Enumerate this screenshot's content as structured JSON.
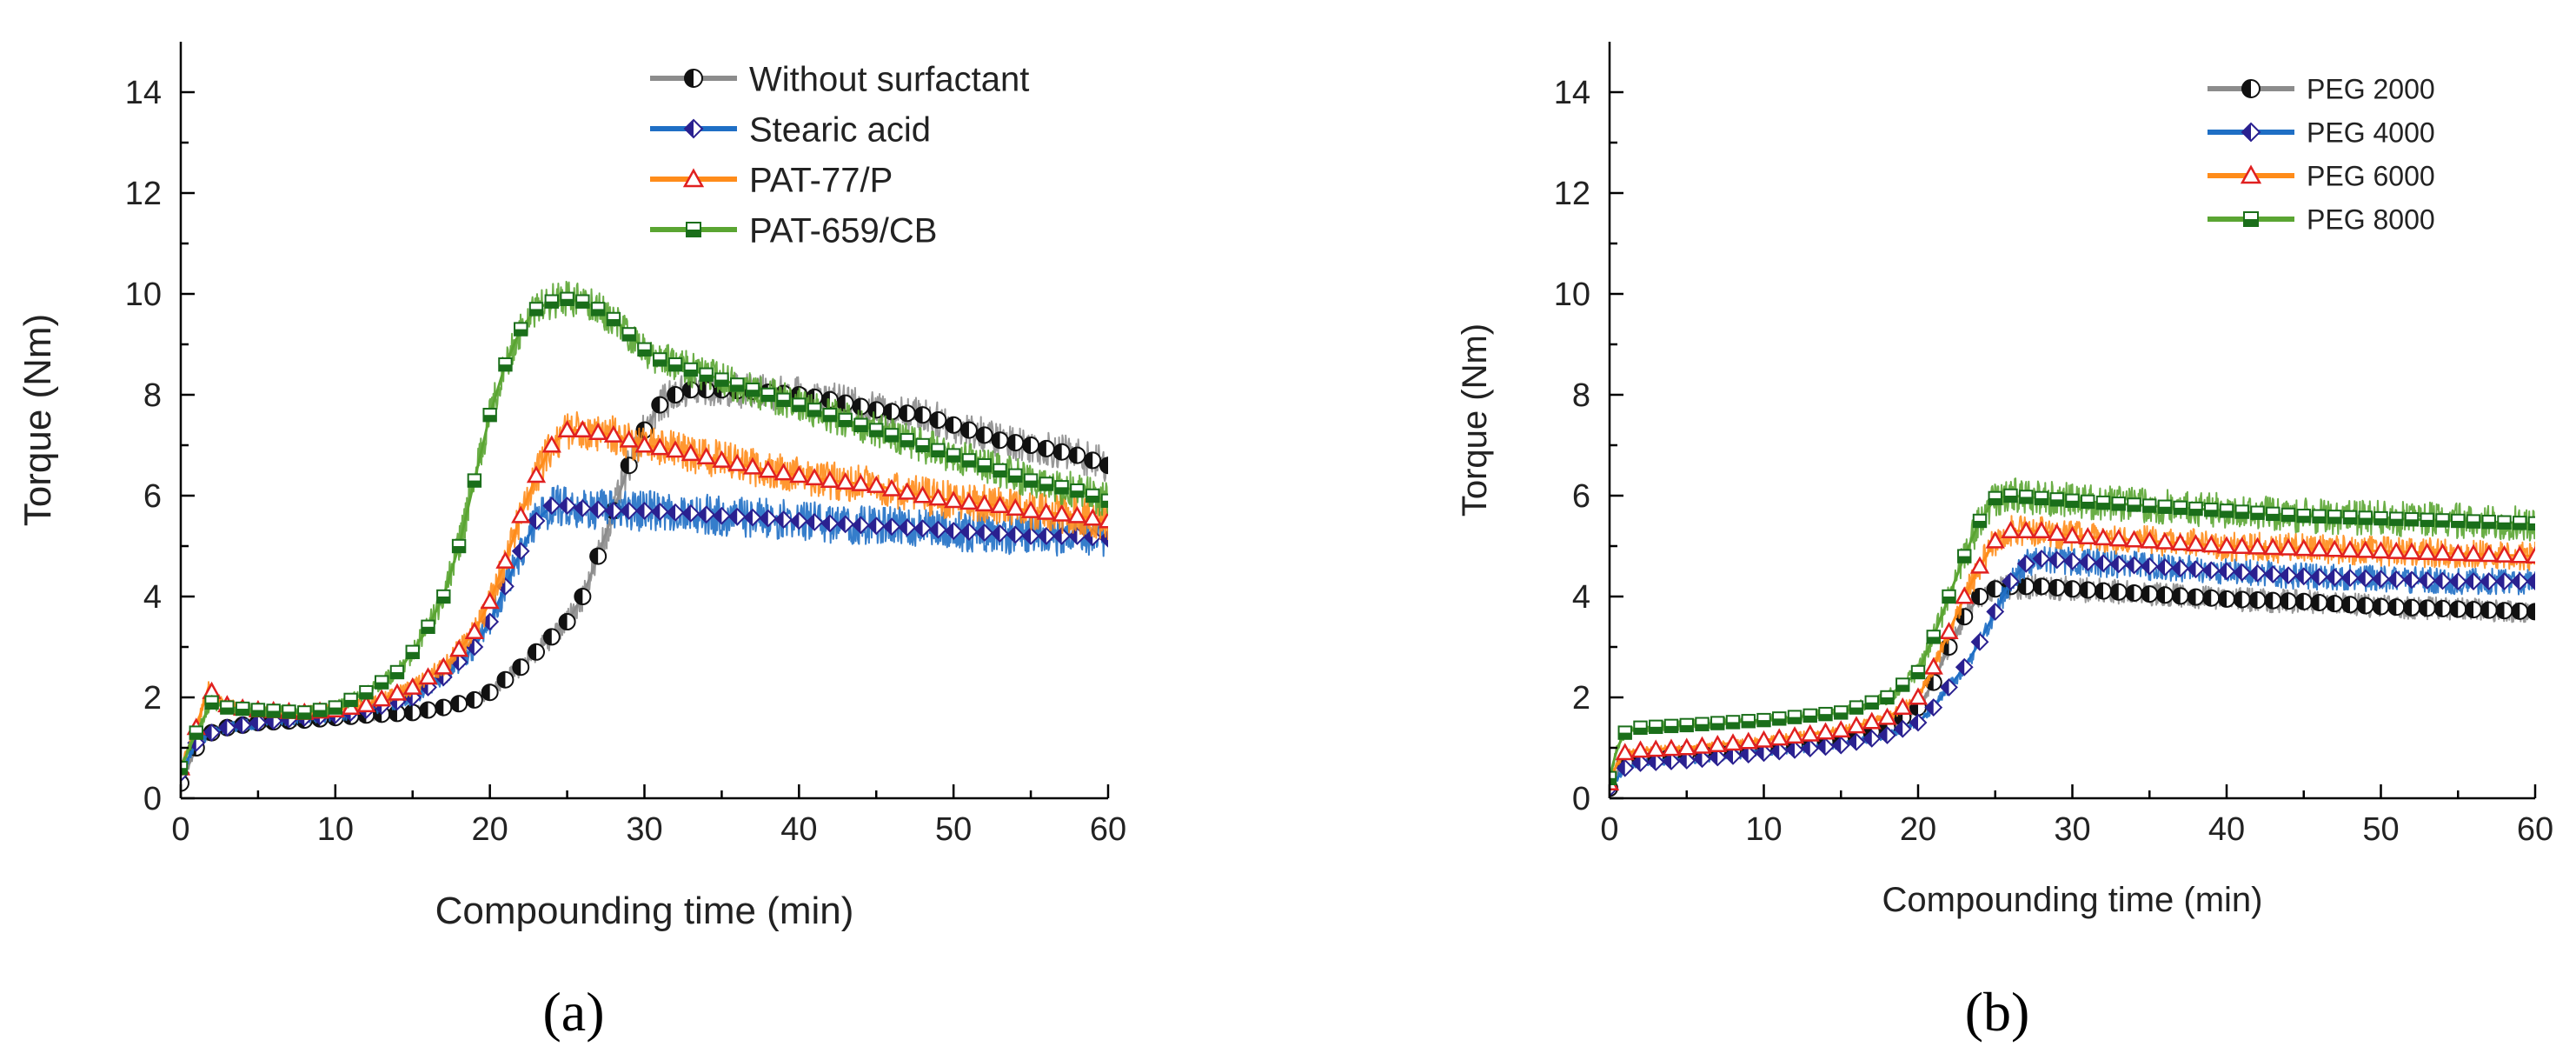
{
  "chart_data": [
    {
      "type": "line",
      "caption": "(a)",
      "xlabel": "Compounding time (min)",
      "ylabel": "Torque (Nm)",
      "xlim": [
        0,
        60
      ],
      "ylim": [
        0,
        15
      ],
      "xticks": [
        "0",
        "10",
        "20",
        "30",
        "40",
        "50",
        "60"
      ],
      "yticks": [
        "0",
        "2",
        "4",
        "6",
        "8",
        "10",
        "12",
        "14"
      ],
      "legend_position": "top-right",
      "series": [
        {
          "name": "Without surfactant",
          "color": "#8c8c8c",
          "marker": "circle",
          "marker_color": "#111111",
          "noise": 0.35,
          "x": [
            0,
            1,
            2,
            3,
            5,
            8,
            10,
            12,
            15,
            17,
            19,
            20,
            21,
            22,
            23,
            24,
            25,
            26,
            27,
            28,
            29,
            30,
            31,
            32,
            33,
            35,
            38,
            40,
            42,
            45,
            48,
            50,
            53,
            55,
            58,
            60
          ],
          "y": [
            0.3,
            1.0,
            1.3,
            1.4,
            1.5,
            1.55,
            1.6,
            1.65,
            1.7,
            1.8,
            1.95,
            2.1,
            2.35,
            2.6,
            2.9,
            3.2,
            3.5,
            4.0,
            4.8,
            5.7,
            6.6,
            7.3,
            7.8,
            8.0,
            8.1,
            8.1,
            8.05,
            8.0,
            7.9,
            7.7,
            7.6,
            7.4,
            7.1,
            7.0,
            6.8,
            6.6
          ]
        },
        {
          "name": "Stearic acid",
          "color": "#1f6fc5",
          "marker": "diamond",
          "marker_color": "#2a2090",
          "noise": 0.4,
          "x": [
            0,
            1,
            2,
            3,
            5,
            8,
            10,
            12,
            15,
            17,
            19,
            20,
            21,
            22,
            23,
            24,
            25,
            26,
            28,
            30,
            33,
            35,
            38,
            40,
            42,
            45,
            48,
            50,
            53,
            55,
            58,
            60
          ],
          "y": [
            0.5,
            1.1,
            1.3,
            1.4,
            1.5,
            1.6,
            1.65,
            1.75,
            2.0,
            2.4,
            3.0,
            3.5,
            4.2,
            4.9,
            5.5,
            5.8,
            5.8,
            5.75,
            5.7,
            5.7,
            5.65,
            5.6,
            5.55,
            5.5,
            5.45,
            5.4,
            5.35,
            5.3,
            5.25,
            5.2,
            5.2,
            5.15
          ]
        },
        {
          "name": "PAT-77/P",
          "color": "#ff8c1a",
          "marker": "triangle",
          "marker_color": "#e02020",
          "noise": 0.38,
          "x": [
            0,
            1,
            1.8,
            2.5,
            3.5,
            5,
            8,
            10,
            12,
            15,
            17,
            19,
            20,
            21,
            22,
            23,
            24,
            25,
            26,
            28,
            30,
            32,
            35,
            38,
            40,
            42,
            45,
            48,
            50,
            53,
            55,
            58,
            60
          ],
          "y": [
            0.6,
            1.4,
            2.2,
            1.9,
            1.8,
            1.75,
            1.7,
            1.75,
            1.85,
            2.2,
            2.6,
            3.3,
            3.9,
            4.7,
            5.6,
            6.4,
            7.0,
            7.3,
            7.3,
            7.2,
            7.0,
            6.9,
            6.7,
            6.5,
            6.4,
            6.3,
            6.2,
            6.0,
            5.9,
            5.8,
            5.7,
            5.6,
            5.5
          ]
        },
        {
          "name": "PAT-659/CB",
          "color": "#5aa532",
          "marker": "square",
          "marker_color": "#1a6e1a",
          "noise": 0.35,
          "x": [
            0,
            1,
            2,
            3,
            5,
            8,
            10,
            12,
            14,
            15,
            16,
            17,
            18,
            19,
            20,
            21,
            22,
            23,
            24,
            25,
            26,
            27,
            28,
            29,
            30,
            31,
            32,
            33,
            35,
            38,
            40,
            42,
            45,
            48,
            50,
            53,
            55,
            58,
            60
          ],
          "y": [
            0.6,
            1.3,
            1.9,
            1.8,
            1.75,
            1.7,
            1.8,
            2.1,
            2.5,
            2.9,
            3.4,
            4.0,
            5.0,
            6.3,
            7.6,
            8.6,
            9.3,
            9.7,
            9.85,
            9.9,
            9.85,
            9.7,
            9.5,
            9.2,
            8.9,
            8.7,
            8.6,
            8.5,
            8.3,
            8.0,
            7.8,
            7.6,
            7.3,
            7.0,
            6.8,
            6.5,
            6.3,
            6.1,
            5.9
          ]
        }
      ]
    },
    {
      "type": "line",
      "caption": "(b)",
      "xlabel": "Compounding time (min)",
      "ylabel": "Torque (Nm)",
      "xlim": [
        0,
        60
      ],
      "ylim": [
        0,
        15
      ],
      "xticks": [
        "0",
        "10",
        "20",
        "30",
        "40",
        "50",
        "60"
      ],
      "yticks": [
        "0",
        "2",
        "4",
        "6",
        "8",
        "10",
        "12",
        "14"
      ],
      "legend_position": "top-right",
      "series": [
        {
          "name": "PEG 2000",
          "color": "#8c8c8c",
          "marker": "circle",
          "marker_color": "#111111",
          "noise": 0.3,
          "x": [
            0,
            0.5,
            1,
            2,
            5,
            10,
            15,
            18,
            20,
            21,
            22,
            23,
            24,
            25,
            26,
            28,
            30,
            35,
            40,
            45,
            50,
            55,
            60
          ],
          "y": [
            0.2,
            0.5,
            0.7,
            0.8,
            0.9,
            1.0,
            1.15,
            1.4,
            1.8,
            2.3,
            3.0,
            3.6,
            4.0,
            4.15,
            4.2,
            4.2,
            4.15,
            4.05,
            3.95,
            3.9,
            3.8,
            3.75,
            3.7
          ]
        },
        {
          "name": "PEG 4000",
          "color": "#1f6fc5",
          "marker": "diamond",
          "marker_color": "#2a2090",
          "noise": 0.3,
          "x": [
            0,
            0.5,
            1,
            2,
            5,
            10,
            15,
            18,
            20,
            21,
            22,
            23,
            24,
            25,
            26,
            27,
            28,
            30,
            35,
            40,
            45,
            50,
            55,
            60
          ],
          "y": [
            0.2,
            0.4,
            0.6,
            0.7,
            0.75,
            0.9,
            1.05,
            1.25,
            1.5,
            1.8,
            2.2,
            2.6,
            3.1,
            3.7,
            4.3,
            4.65,
            4.75,
            4.7,
            4.6,
            4.5,
            4.4,
            4.35,
            4.3,
            4.3
          ]
        },
        {
          "name": "PEG 6000",
          "color": "#ff8c1a",
          "marker": "triangle",
          "marker_color": "#e02020",
          "noise": 0.3,
          "x": [
            0,
            0.5,
            1,
            2,
            5,
            10,
            15,
            18,
            20,
            21,
            22,
            23,
            24,
            25,
            26,
            28,
            30,
            35,
            40,
            45,
            50,
            55,
            60
          ],
          "y": [
            0.3,
            0.7,
            0.9,
            0.95,
            1.0,
            1.15,
            1.35,
            1.6,
            2.0,
            2.6,
            3.3,
            4.0,
            4.6,
            5.1,
            5.3,
            5.3,
            5.2,
            5.1,
            5.0,
            4.95,
            4.9,
            4.85,
            4.8
          ]
        },
        {
          "name": "PEG 8000",
          "color": "#5aa532",
          "marker": "square",
          "marker_color": "#1a6e1a",
          "noise": 0.35,
          "x": [
            0,
            0.5,
            1,
            2,
            5,
            10,
            15,
            18,
            20,
            21,
            22,
            23,
            24,
            25,
            26,
            28,
            30,
            35,
            40,
            45,
            50,
            55,
            60
          ],
          "y": [
            0.4,
            1.0,
            1.3,
            1.4,
            1.45,
            1.55,
            1.7,
            2.0,
            2.5,
            3.2,
            4.0,
            4.8,
            5.5,
            5.95,
            6.0,
            5.95,
            5.9,
            5.8,
            5.7,
            5.6,
            5.55,
            5.5,
            5.45
          ]
        }
      ]
    }
  ]
}
